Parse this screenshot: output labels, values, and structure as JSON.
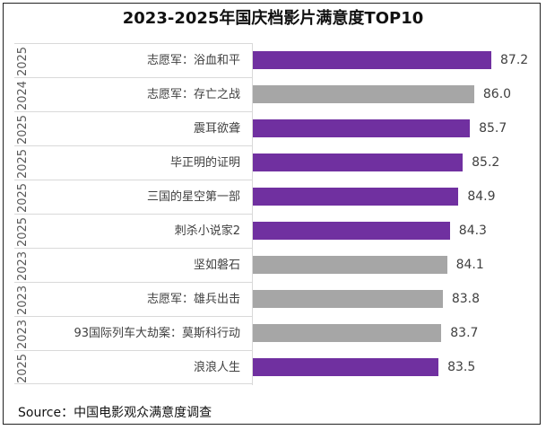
{
  "chart_data": {
    "type": "bar",
    "orientation": "horizontal",
    "title": "2023-2025年国庆档影片满意度TOP10",
    "categories": [
      "志愿军：浴血和平",
      "志愿军：存亡之战",
      "震耳欲聋",
      "毕正明的证明",
      "三国的星空第一部",
      "刺杀小说家2",
      "坚如磐石",
      "志愿军：雄兵出击",
      "93国际列车大劫案：莫斯科行动",
      "浪浪人生"
    ],
    "years": [
      "2025",
      "2024",
      "2025",
      "2025",
      "2025",
      "2025",
      "2023",
      "2023",
      "2023",
      "2025"
    ],
    "values": [
      87.2,
      86.0,
      85.7,
      85.2,
      84.9,
      84.3,
      84.1,
      83.8,
      83.7,
      83.5
    ],
    "value_labels": [
      "87.2",
      "86.0",
      "85.7",
      "85.2",
      "84.9",
      "84.3",
      "84.1",
      "83.8",
      "83.7",
      "83.5"
    ],
    "xlim": [
      70.5,
      90
    ],
    "grid": false,
    "colors": {
      "2025": "#7030a0",
      "other": "#a6a6a6"
    }
  },
  "source": "Source：中国电影观众满意度调查"
}
